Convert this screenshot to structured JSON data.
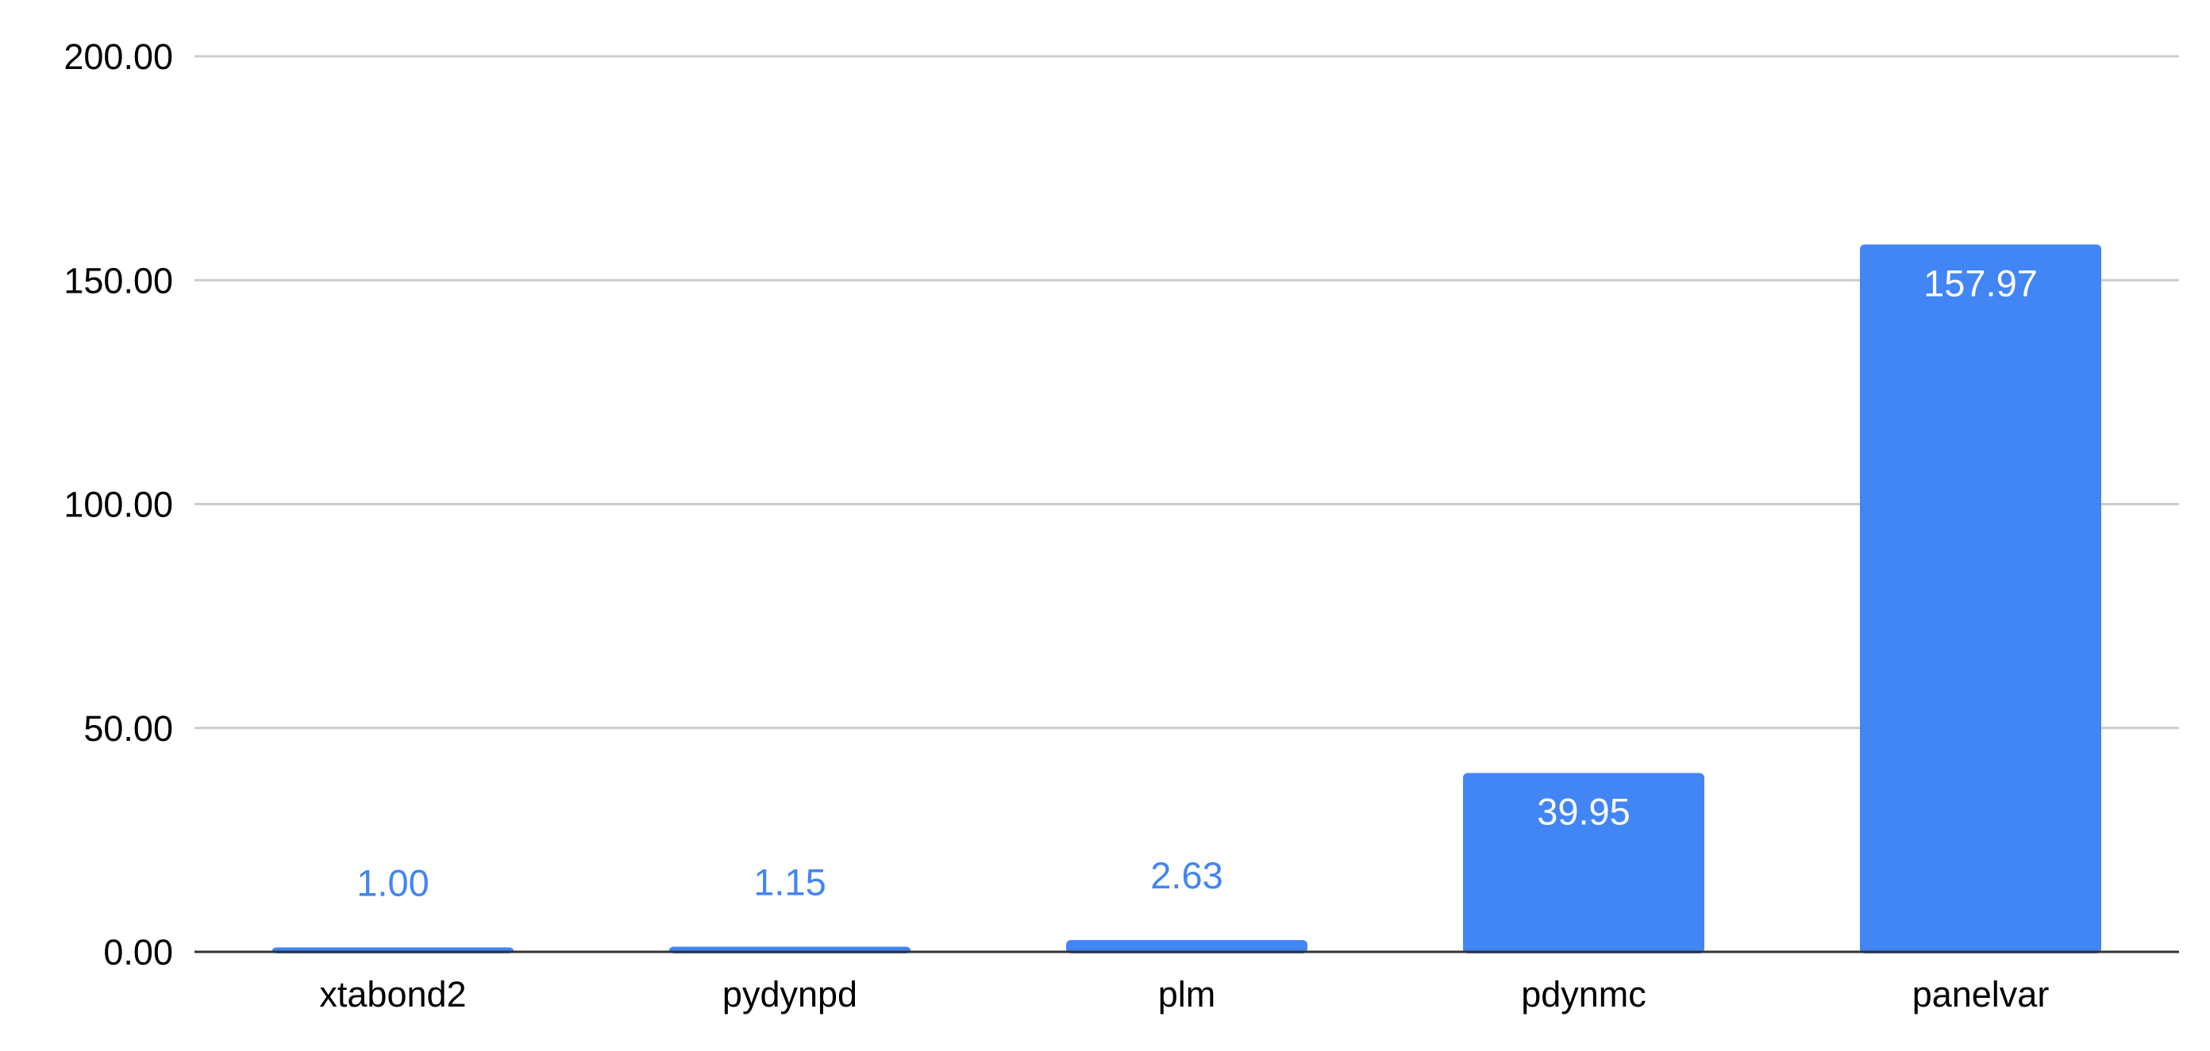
{
  "chart_data": {
    "type": "bar",
    "categories": [
      "xtabond2",
      "pydynpd",
      "plm",
      "pdynmc",
      "panelvar"
    ],
    "values": [
      1.0,
      1.15,
      2.63,
      39.95,
      157.97
    ],
    "data_labels": [
      "1.00",
      "1.15",
      "2.63",
      "39.95",
      "157.97"
    ],
    "y_ticks": [
      "0.00",
      "50.00",
      "100.00",
      "150.00",
      "200.00"
    ],
    "y_tick_values": [
      0,
      50,
      100,
      150,
      200
    ],
    "ylim": [
      0,
      200
    ],
    "title": "",
    "xlabel": "",
    "ylabel": "",
    "grid": true,
    "legend": "none",
    "colors": {
      "bar": "#4285f4",
      "label_inside": "#ffffff",
      "label_outside": "#4285f4",
      "grid": "#cccccc",
      "axis": "#333333",
      "text": "#000000"
    }
  }
}
